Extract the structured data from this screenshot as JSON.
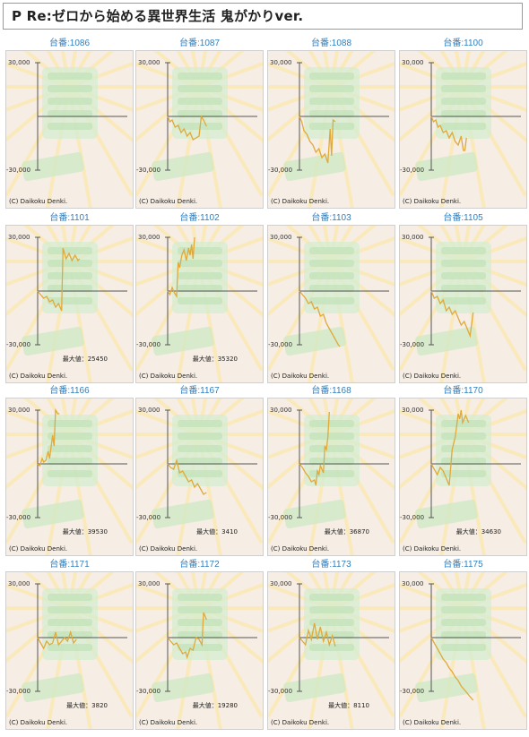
{
  "page_title": "P Re:ゼロから始める異世界生活 鬼がかりver.",
  "axis": {
    "y_top": "30,000",
    "y_bottom": "-30,000",
    "x_right": "60,000"
  },
  "copyright": "(C) Daikoku Denki.",
  "machines": [
    {
      "label": "台番:1086",
      "max_text": "",
      "chart_data": {
        "type": "line",
        "x": [],
        "y": []
      }
    },
    {
      "label": "台番:1087",
      "max_text": "",
      "chart_data": {
        "type": "line",
        "x": [
          0,
          1500,
          3000,
          5000,
          7000,
          9000,
          11000,
          13000,
          15000,
          17000,
          19000,
          21000,
          22500,
          24000,
          26000
        ],
        "y": [
          0,
          -3000,
          -2000,
          -6000,
          -5000,
          -9000,
          -7000,
          -11000,
          -9000,
          -13000,
          -12000,
          -11000,
          0,
          -2000,
          -5500
        ]
      }
    },
    {
      "label": "台番:1088",
      "max_text": "",
      "chart_data": {
        "type": "line",
        "x": [
          0,
          1500,
          3000,
          5000,
          7000,
          9000,
          11000,
          13000,
          15000,
          17000,
          19000,
          20500,
          21500,
          22500,
          24000
        ],
        "y": [
          0,
          -3000,
          -8000,
          -10000,
          -14000,
          -16000,
          -20000,
          -18000,
          -23000,
          -21000,
          -26000,
          -7000,
          -22000,
          -2000,
          -3000
        ]
      }
    },
    {
      "label": "台番:1100",
      "max_text": "",
      "chart_data": {
        "type": "line",
        "x": [
          0,
          1500,
          3000,
          4500,
          6000,
          8000,
          10000,
          12000,
          14000,
          16000,
          18000,
          20000,
          21500,
          22500,
          23500
        ],
        "y": [
          0,
          -3000,
          -2000,
          -6000,
          -5000,
          -9000,
          -8000,
          -12000,
          -9000,
          -14000,
          -16000,
          -11000,
          -19000,
          -19000,
          -12000
        ]
      }
    },
    {
      "label": "台番:1101",
      "max_text": "最大値：25450",
      "chart_data": {
        "type": "line",
        "x": [
          0,
          2000,
          4000,
          6000,
          8000,
          10000,
          12000,
          14000,
          16000,
          17000,
          19000,
          21000,
          23000,
          25000,
          27000,
          28000
        ],
        "y": [
          0,
          -2000,
          -4000,
          -3000,
          -6000,
          -5000,
          -9000,
          -7000,
          -11000,
          24000,
          18000,
          21000,
          17000,
          20000,
          17000,
          18000
        ]
      }
    },
    {
      "label": "台番:1102",
      "max_text": "最大値：35320",
      "chart_data": {
        "type": "line",
        "x": [
          0,
          1500,
          3000,
          4500,
          6000,
          7000,
          8000,
          9500,
          11000,
          12500,
          14000,
          15000,
          16000,
          17000,
          18000
        ],
        "y": [
          0,
          -2000,
          2000,
          -1000,
          -3000,
          16000,
          13000,
          20000,
          23000,
          17000,
          24000,
          20000,
          26000,
          18000,
          30000
        ]
      }
    },
    {
      "label": "台番:1103",
      "max_text": "",
      "chart_data": {
        "type": "line",
        "x": [
          0,
          2000,
          4000,
          6000,
          8000,
          10000,
          12000,
          14000,
          16000,
          18000,
          20000,
          22000,
          24000,
          26000,
          27000
        ],
        "y": [
          0,
          -2000,
          -4000,
          -7000,
          -6000,
          -10000,
          -9000,
          -14000,
          -13000,
          -18000,
          -21000,
          -24000,
          -27000,
          -30000,
          -31000
        ]
      }
    },
    {
      "label": "台番:1105",
      "max_text": "",
      "chart_data": {
        "type": "line",
        "x": [
          0,
          2000,
          4000,
          6000,
          8000,
          10000,
          12000,
          14000,
          16000,
          18000,
          20000,
          22000,
          24000,
          26000,
          28000
        ],
        "y": [
          0,
          -4000,
          -3000,
          -7000,
          -5000,
          -11000,
          -9000,
          -13000,
          -11000,
          -15000,
          -19000,
          -17000,
          -21000,
          -25000,
          -12000
        ]
      }
    },
    {
      "label": "台番:1166",
      "max_text": "最大値：39530",
      "chart_data": {
        "type": "line",
        "x": [
          0,
          1500,
          3000,
          4000,
          5500,
          7000,
          8000,
          10000,
          11000,
          12000,
          13500,
          14500
        ],
        "y": [
          0,
          -1000,
          3000,
          1000,
          2000,
          7000,
          3000,
          16000,
          10000,
          30000,
          28000,
          28000
        ]
      }
    },
    {
      "label": "台番:1167",
      "max_text": "最大値：3410",
      "chart_data": {
        "type": "line",
        "x": [
          0,
          2000,
          4000,
          6000,
          8000,
          10000,
          12000,
          14000,
          16000,
          18000,
          20000,
          22000,
          24000,
          26000
        ],
        "y": [
          0,
          -2000,
          -3000,
          2000,
          -5000,
          -4000,
          -7000,
          -10000,
          -9000,
          -13000,
          -11000,
          -14000,
          -17000,
          -16000
        ]
      }
    },
    {
      "label": "台番:1168",
      "max_text": "最大値：36870",
      "chart_data": {
        "type": "line",
        "x": [
          0,
          2000,
          4000,
          6000,
          8000,
          10000,
          11000,
          12000,
          13000,
          14000,
          16000,
          17000,
          18000,
          19000,
          20000
        ],
        "y": [
          0,
          -2000,
          -5000,
          -7000,
          -10000,
          -9000,
          -12000,
          -4000,
          -6000,
          -1000,
          -5000,
          10000,
          8000,
          15000,
          29000
        ]
      }
    },
    {
      "label": "台番:1170",
      "max_text": "最大値：34630",
      "chart_data": {
        "type": "line",
        "x": [
          0,
          2000,
          4000,
          6000,
          8000,
          10000,
          12000,
          14000,
          16000,
          17000,
          18000,
          19000,
          20000,
          21000,
          23000,
          25000
        ],
        "y": [
          0,
          -3000,
          -6000,
          -2000,
          -4000,
          -8000,
          -12000,
          8000,
          15000,
          21000,
          28000,
          25000,
          30000,
          23000,
          27000,
          23000
        ]
      }
    },
    {
      "label": "台番:1171",
      "max_text": "最大値：3820",
      "chart_data": {
        "type": "line",
        "x": [
          0,
          2000,
          4000,
          6000,
          8000,
          10000,
          12000,
          14000,
          16000,
          18000,
          20000,
          22000,
          24000,
          26000
        ],
        "y": [
          0,
          -3000,
          -6000,
          -2000,
          -4000,
          -3000,
          3000,
          -4000,
          -2000,
          0,
          -2000,
          3000,
          -3000,
          -1000
        ]
      }
    },
    {
      "label": "台番:1172",
      "max_text": "最大値：19280",
      "chart_data": {
        "type": "line",
        "x": [
          0,
          2000,
          4000,
          6000,
          8000,
          10000,
          12000,
          13000,
          15000,
          17000,
          19000,
          21000,
          23000,
          24000,
          25000,
          26000
        ],
        "y": [
          0,
          -2000,
          -4000,
          -3000,
          -6000,
          -9000,
          -8000,
          -11000,
          -6000,
          -7000,
          0,
          -1000,
          -4000,
          14000,
          12000,
          10000
        ]
      }
    },
    {
      "label": "台番:1173",
      "max_text": "最大値：8110",
      "chart_data": {
        "type": "line",
        "x": [
          0,
          2000,
          4000,
          6000,
          8000,
          10000,
          12000,
          14000,
          16000,
          18000,
          20000,
          22000,
          24000
        ],
        "y": [
          0,
          -2000,
          -4000,
          4000,
          -1000,
          8000,
          -1000,
          6000,
          -2000,
          3000,
          -4000,
          1000,
          -5000
        ]
      }
    },
    {
      "label": "台番:1175",
      "max_text": "",
      "chart_data": {
        "type": "line",
        "x": [
          0,
          2000,
          4000,
          6000,
          8000,
          10000,
          12000,
          14000,
          16000,
          18000,
          20000,
          22000,
          24000,
          26000,
          28000
        ],
        "y": [
          0,
          -3000,
          -6000,
          -9000,
          -12000,
          -14000,
          -17000,
          -19000,
          -22000,
          -24000,
          -27000,
          -29000,
          -31000,
          -33000,
          -35000
        ]
      }
    }
  ]
}
